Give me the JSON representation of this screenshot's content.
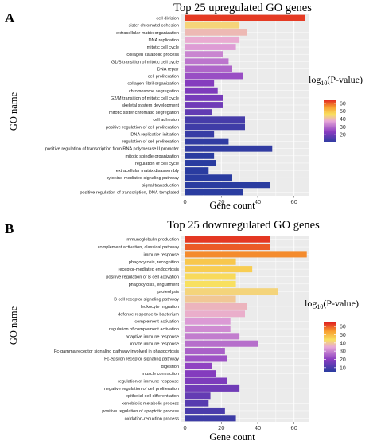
{
  "chart_data": [
    {
      "type": "bar",
      "panel": "A",
      "title": "Top 25 upregulated GO genes",
      "xlabel": "Gene count",
      "ylabel": "GO name",
      "xlim": [
        -2,
        68
      ],
      "xticks": [
        0,
        20,
        40,
        60
      ],
      "grid": true,
      "legend": {
        "title": "log10(P-value)",
        "ticks": [
          20,
          30,
          40,
          50,
          60
        ],
        "range": [
          10,
          65
        ],
        "placement": "right"
      },
      "categories": [
        "cell division",
        "sister chromatid cohesion",
        "extracellular matrix organization",
        "DNA replication",
        "mitotic cell cycle",
        "collagen catabolic process",
        "G1/S transition of mitotic cell cycle",
        "DNA repair",
        "cell proliferation",
        "collagen fibril organization",
        "chromosome segregation",
        "G2/M transition of mitotic cell cycle",
        "skeletal system development",
        "mitotic sister chromatid segregation",
        "cell adhesion",
        "positive regulation of cell proliferation",
        "DNA replication initiation",
        "regulation of cell proliferation",
        "positive regulation of transcription from RNA polymerase II promoter",
        "mitotic spindle organization",
        "regulation of cell cycle",
        "extracellular matrix disassembly",
        "cytokine-mediated signaling pathway",
        "signal transduction",
        "positive regulation of transcription, DNA-templated"
      ],
      "values": [
        66,
        30,
        34,
        30,
        28,
        21,
        24,
        26,
        32,
        16,
        18,
        21,
        21,
        15,
        33,
        33,
        16,
        24,
        48,
        16,
        17,
        13,
        26,
        47,
        32
      ],
      "color_values": [
        63,
        44,
        40,
        38,
        36,
        33,
        31,
        29,
        26,
        23,
        22,
        21,
        20,
        18,
        14,
        13,
        12,
        11,
        11,
        10,
        10,
        10,
        10,
        10,
        10
      ]
    },
    {
      "type": "bar",
      "panel": "B",
      "title": "Top 25 downregulated GO genes",
      "xlabel": "Gene count",
      "ylabel": "GO name",
      "xlim": [
        -2,
        68
      ],
      "xticks": [
        0,
        20,
        40,
        60
      ],
      "grid": true,
      "legend": {
        "title": "log10(P-value)",
        "ticks": [
          10,
          20,
          30,
          40,
          50,
          60
        ],
        "range": [
          5,
          65
        ],
        "placement": "right"
      },
      "categories": [
        "immunoglobulin production",
        "complement activation, classical pathway",
        "immune response",
        "phagocytosis, recognition",
        "receptor-mediated endocytosis",
        "positive regulation of B cell activation",
        "phagocytosis, engulfment",
        "proteolysis",
        "B cell receptor signaling pathway",
        "leukocyte migration",
        "defense response to bacterium",
        "complement activation",
        "regulation of complement activation",
        "adaptive immune response",
        "innate immune response",
        "Fc-gamma receptor signaling pathway involved in phagocytosis",
        "Fc-epsilon receptor signaling pathway",
        "digestion",
        "muscle contraction",
        "regulation of immune response",
        "negative regulation of cell proliferation",
        "epithelial cell differentiation",
        "xenobiotic metabolic process",
        "positive regulation of apoptotic process",
        "oxidation-reduction process"
      ],
      "values": [
        47,
        47,
        67,
        28,
        37,
        28,
        28,
        51,
        28,
        34,
        33,
        25,
        25,
        30,
        40,
        22,
        23,
        15,
        17,
        23,
        30,
        14,
        13,
        22,
        28
      ],
      "color_values": [
        63,
        60,
        56,
        48,
        47,
        45,
        44,
        42,
        40,
        37,
        36,
        33,
        31,
        29,
        27,
        25,
        23,
        21,
        19,
        18,
        16,
        14,
        12,
        10,
        8
      ]
    }
  ]
}
